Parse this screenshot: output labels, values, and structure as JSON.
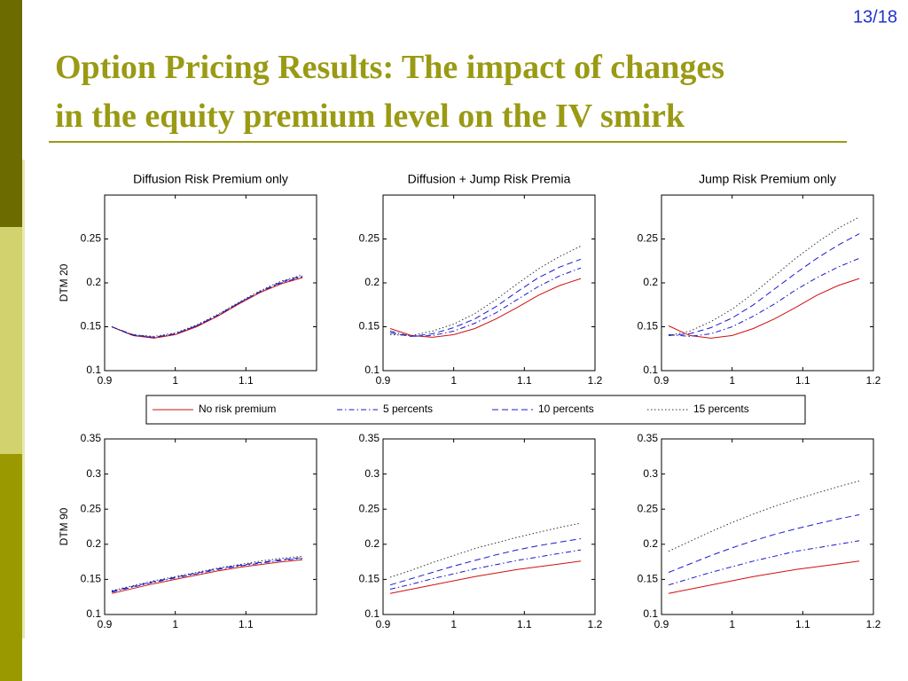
{
  "page_number": "13/18",
  "title": [
    "Option Pricing Results: The impact of changes",
    "in the equity premium level on the IV smirk"
  ],
  "legend": [
    {
      "name": "No risk premium",
      "color": "#d01010",
      "style": "solid"
    },
    {
      "name": "5 percents",
      "color": "#1a1acc",
      "style": "dashdot"
    },
    {
      "name": "10 percents",
      "color": "#1a1acc",
      "style": "dashed"
    },
    {
      "name": "15 percents",
      "color": "#333333",
      "style": "dotted"
    }
  ],
  "chart_data": [
    {
      "type": "line",
      "title": "Diffusion Risk Premium only",
      "ylabel": "DTM 20",
      "x": [
        0.91,
        0.94,
        0.97,
        1.0,
        1.03,
        1.06,
        1.09,
        1.12,
        1.15,
        1.18
      ],
      "xlim": [
        0.9,
        1.2
      ],
      "xticks": [
        0.9,
        1,
        1.1
      ],
      "ylim": [
        0.1,
        0.3
      ],
      "yticks": [
        0.1,
        0.15,
        0.2,
        0.25
      ],
      "series": [
        {
          "values": [
            0.15,
            0.14,
            0.137,
            0.141,
            0.15,
            0.162,
            0.176,
            0.189,
            0.199,
            0.206
          ]
        },
        {
          "values": [
            0.15,
            0.14,
            0.138,
            0.142,
            0.151,
            0.163,
            0.177,
            0.19,
            0.2,
            0.207
          ]
        },
        {
          "values": [
            0.15,
            0.141,
            0.138,
            0.142,
            0.151,
            0.163,
            0.177,
            0.19,
            0.201,
            0.208
          ]
        },
        {
          "values": [
            0.15,
            0.141,
            0.139,
            0.143,
            0.152,
            0.164,
            0.178,
            0.191,
            0.202,
            0.209
          ]
        }
      ]
    },
    {
      "type": "line",
      "title": "Diffusion + Jump Risk Premia",
      "x": [
        0.91,
        0.94,
        0.97,
        1.0,
        1.03,
        1.06,
        1.09,
        1.12,
        1.15,
        1.18
      ],
      "xlim": [
        0.9,
        1.2
      ],
      "xticks": [
        0.9,
        1,
        1.1,
        1.2
      ],
      "ylim": [
        0.1,
        0.3
      ],
      "yticks": [
        0.1,
        0.15,
        0.2,
        0.25
      ],
      "series": [
        {
          "values": [
            0.148,
            0.14,
            0.138,
            0.141,
            0.148,
            0.159,
            0.172,
            0.186,
            0.197,
            0.205
          ]
        },
        {
          "values": [
            0.145,
            0.139,
            0.14,
            0.145,
            0.154,
            0.166,
            0.181,
            0.196,
            0.208,
            0.217
          ]
        },
        {
          "values": [
            0.143,
            0.139,
            0.142,
            0.149,
            0.159,
            0.173,
            0.19,
            0.206,
            0.218,
            0.227
          ]
        },
        {
          "values": [
            0.141,
            0.14,
            0.145,
            0.153,
            0.165,
            0.181,
            0.199,
            0.216,
            0.23,
            0.242
          ]
        }
      ]
    },
    {
      "type": "line",
      "title": "Jump Risk Premium only",
      "x": [
        0.91,
        0.94,
        0.97,
        1.0,
        1.03,
        1.06,
        1.09,
        1.12,
        1.15,
        1.18
      ],
      "xlim": [
        0.9,
        1.2
      ],
      "xticks": [
        0.9,
        1,
        1.1,
        1.2
      ],
      "ylim": [
        0.1,
        0.3
      ],
      "yticks": [
        0.1,
        0.15,
        0.2,
        0.25
      ],
      "series": [
        {
          "values": [
            0.151,
            0.14,
            0.137,
            0.14,
            0.148,
            0.159,
            0.172,
            0.186,
            0.197,
            0.205
          ]
        },
        {
          "values": [
            0.141,
            0.139,
            0.142,
            0.15,
            0.162,
            0.176,
            0.192,
            0.206,
            0.218,
            0.228
          ]
        },
        {
          "values": [
            0.14,
            0.142,
            0.149,
            0.16,
            0.175,
            0.193,
            0.211,
            0.228,
            0.243,
            0.256
          ]
        },
        {
          "values": [
            0.14,
            0.145,
            0.156,
            0.17,
            0.188,
            0.208,
            0.228,
            0.246,
            0.262,
            0.275
          ]
        }
      ]
    },
    {
      "type": "line",
      "ylabel": "DTM 90",
      "x": [
        0.91,
        0.94,
        0.97,
        1.0,
        1.03,
        1.06,
        1.09,
        1.12,
        1.15,
        1.18
      ],
      "xlim": [
        0.9,
        1.2
      ],
      "xticks": [
        0.9,
        1,
        1.1
      ],
      "ylim": [
        0.1,
        0.35
      ],
      "yticks": [
        0.1,
        0.15,
        0.2,
        0.25,
        0.3,
        0.35
      ],
      "series": [
        {
          "values": [
            0.13,
            0.137,
            0.144,
            0.15,
            0.156,
            0.162,
            0.167,
            0.171,
            0.175,
            0.178
          ]
        },
        {
          "values": [
            0.132,
            0.139,
            0.146,
            0.152,
            0.158,
            0.164,
            0.169,
            0.173,
            0.177,
            0.18
          ]
        },
        {
          "values": [
            0.133,
            0.14,
            0.147,
            0.153,
            0.159,
            0.165,
            0.17,
            0.174,
            0.178,
            0.181
          ]
        },
        {
          "values": [
            0.134,
            0.141,
            0.148,
            0.154,
            0.16,
            0.166,
            0.171,
            0.176,
            0.18,
            0.183
          ]
        }
      ]
    },
    {
      "type": "line",
      "x": [
        0.91,
        0.94,
        0.97,
        1.0,
        1.03,
        1.06,
        1.09,
        1.12,
        1.15,
        1.18
      ],
      "xlim": [
        0.9,
        1.2
      ],
      "xticks": [
        0.9,
        1,
        1.1,
        1.2
      ],
      "ylim": [
        0.1,
        0.35
      ],
      "yticks": [
        0.1,
        0.15,
        0.2,
        0.25,
        0.3,
        0.35
      ],
      "series": [
        {
          "values": [
            0.13,
            0.136,
            0.142,
            0.148,
            0.154,
            0.159,
            0.164,
            0.168,
            0.172,
            0.176
          ]
        },
        {
          "values": [
            0.136,
            0.143,
            0.151,
            0.158,
            0.165,
            0.171,
            0.177,
            0.182,
            0.187,
            0.192
          ]
        },
        {
          "values": [
            0.142,
            0.151,
            0.16,
            0.169,
            0.177,
            0.185,
            0.192,
            0.198,
            0.203,
            0.208
          ]
        },
        {
          "values": [
            0.153,
            0.163,
            0.174,
            0.184,
            0.194,
            0.202,
            0.21,
            0.217,
            0.224,
            0.23
          ]
        }
      ]
    },
    {
      "type": "line",
      "x": [
        0.91,
        0.94,
        0.97,
        1.0,
        1.03,
        1.06,
        1.09,
        1.12,
        1.15,
        1.18
      ],
      "xlim": [
        0.9,
        1.2
      ],
      "xticks": [
        0.9,
        1,
        1.1,
        1.2
      ],
      "ylim": [
        0.1,
        0.35
      ],
      "yticks": [
        0.1,
        0.15,
        0.2,
        0.25,
        0.3,
        0.35
      ],
      "series": [
        {
          "values": [
            0.13,
            0.136,
            0.142,
            0.148,
            0.154,
            0.159,
            0.164,
            0.168,
            0.172,
            0.176
          ]
        },
        {
          "values": [
            0.142,
            0.151,
            0.16,
            0.168,
            0.176,
            0.183,
            0.19,
            0.195,
            0.2,
            0.205
          ]
        },
        {
          "values": [
            0.16,
            0.172,
            0.184,
            0.195,
            0.205,
            0.214,
            0.222,
            0.229,
            0.236,
            0.242
          ]
        },
        {
          "values": [
            0.19,
            0.204,
            0.218,
            0.231,
            0.243,
            0.254,
            0.264,
            0.273,
            0.282,
            0.29
          ]
        }
      ]
    }
  ]
}
